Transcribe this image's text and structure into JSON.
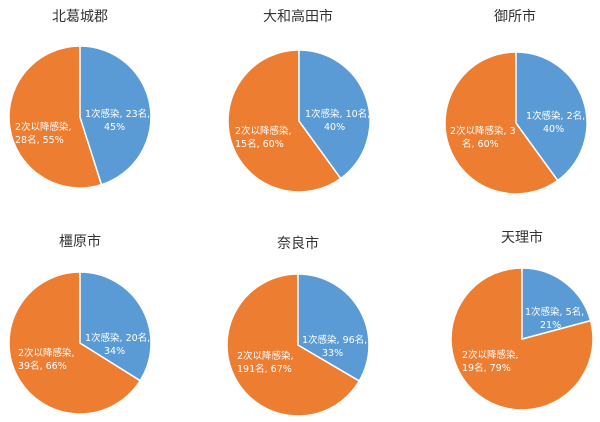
{
  "colors": {
    "first": "#5b9bd5",
    "second": "#ed7d31"
  },
  "chart_data": [
    {
      "type": "pie",
      "title": "北葛城郡",
      "slices": [
        {
          "label_lines": [
            "1次感染, 23名,",
            "45%"
          ],
          "count": 23,
          "percent": 45
        },
        {
          "label_lines": [
            "2次以降感染,",
            "28名, 55%"
          ],
          "count": 28,
          "percent": 55
        }
      ]
    },
    {
      "type": "pie",
      "title": "大和高田市",
      "slices": [
        {
          "label_lines": [
            "1次感染, 10名,",
            "40%"
          ],
          "count": 10,
          "percent": 40
        },
        {
          "label_lines": [
            "2次以降感染,",
            "15名, 60%"
          ],
          "count": 15,
          "percent": 60
        }
      ]
    },
    {
      "type": "pie",
      "title": "御所市",
      "slices": [
        {
          "label_lines": [
            "1次感染, 2名,",
            "40%"
          ],
          "count": 2,
          "percent": 40
        },
        {
          "label_lines": [
            "2次以降感染, 3",
            "名, 60%"
          ],
          "count": 3,
          "percent": 60
        }
      ]
    },
    {
      "type": "pie",
      "title": "橿原市",
      "slices": [
        {
          "label_lines": [
            "1次感染, 20名,",
            "34%"
          ],
          "count": 20,
          "percent": 34
        },
        {
          "label_lines": [
            "2次以降感染,",
            "39名, 66%"
          ],
          "count": 39,
          "percent": 66
        }
      ]
    },
    {
      "type": "pie",
      "title": "奈良市",
      "slices": [
        {
          "label_lines": [
            "1次感染, 96名,",
            "33%"
          ],
          "count": 96,
          "percent": 33
        },
        {
          "label_lines": [
            "2次以降感染,",
            "191名, 67%"
          ],
          "count": 191,
          "percent": 67
        }
      ]
    },
    {
      "type": "pie",
      "title": "天理市",
      "slices": [
        {
          "label_lines": [
            "1次感染, 5名,",
            "21%"
          ],
          "count": 5,
          "percent": 21
        },
        {
          "label_lines": [
            "2次以降感染,",
            "19名, 79%"
          ],
          "count": 19,
          "percent": 79
        }
      ]
    }
  ]
}
